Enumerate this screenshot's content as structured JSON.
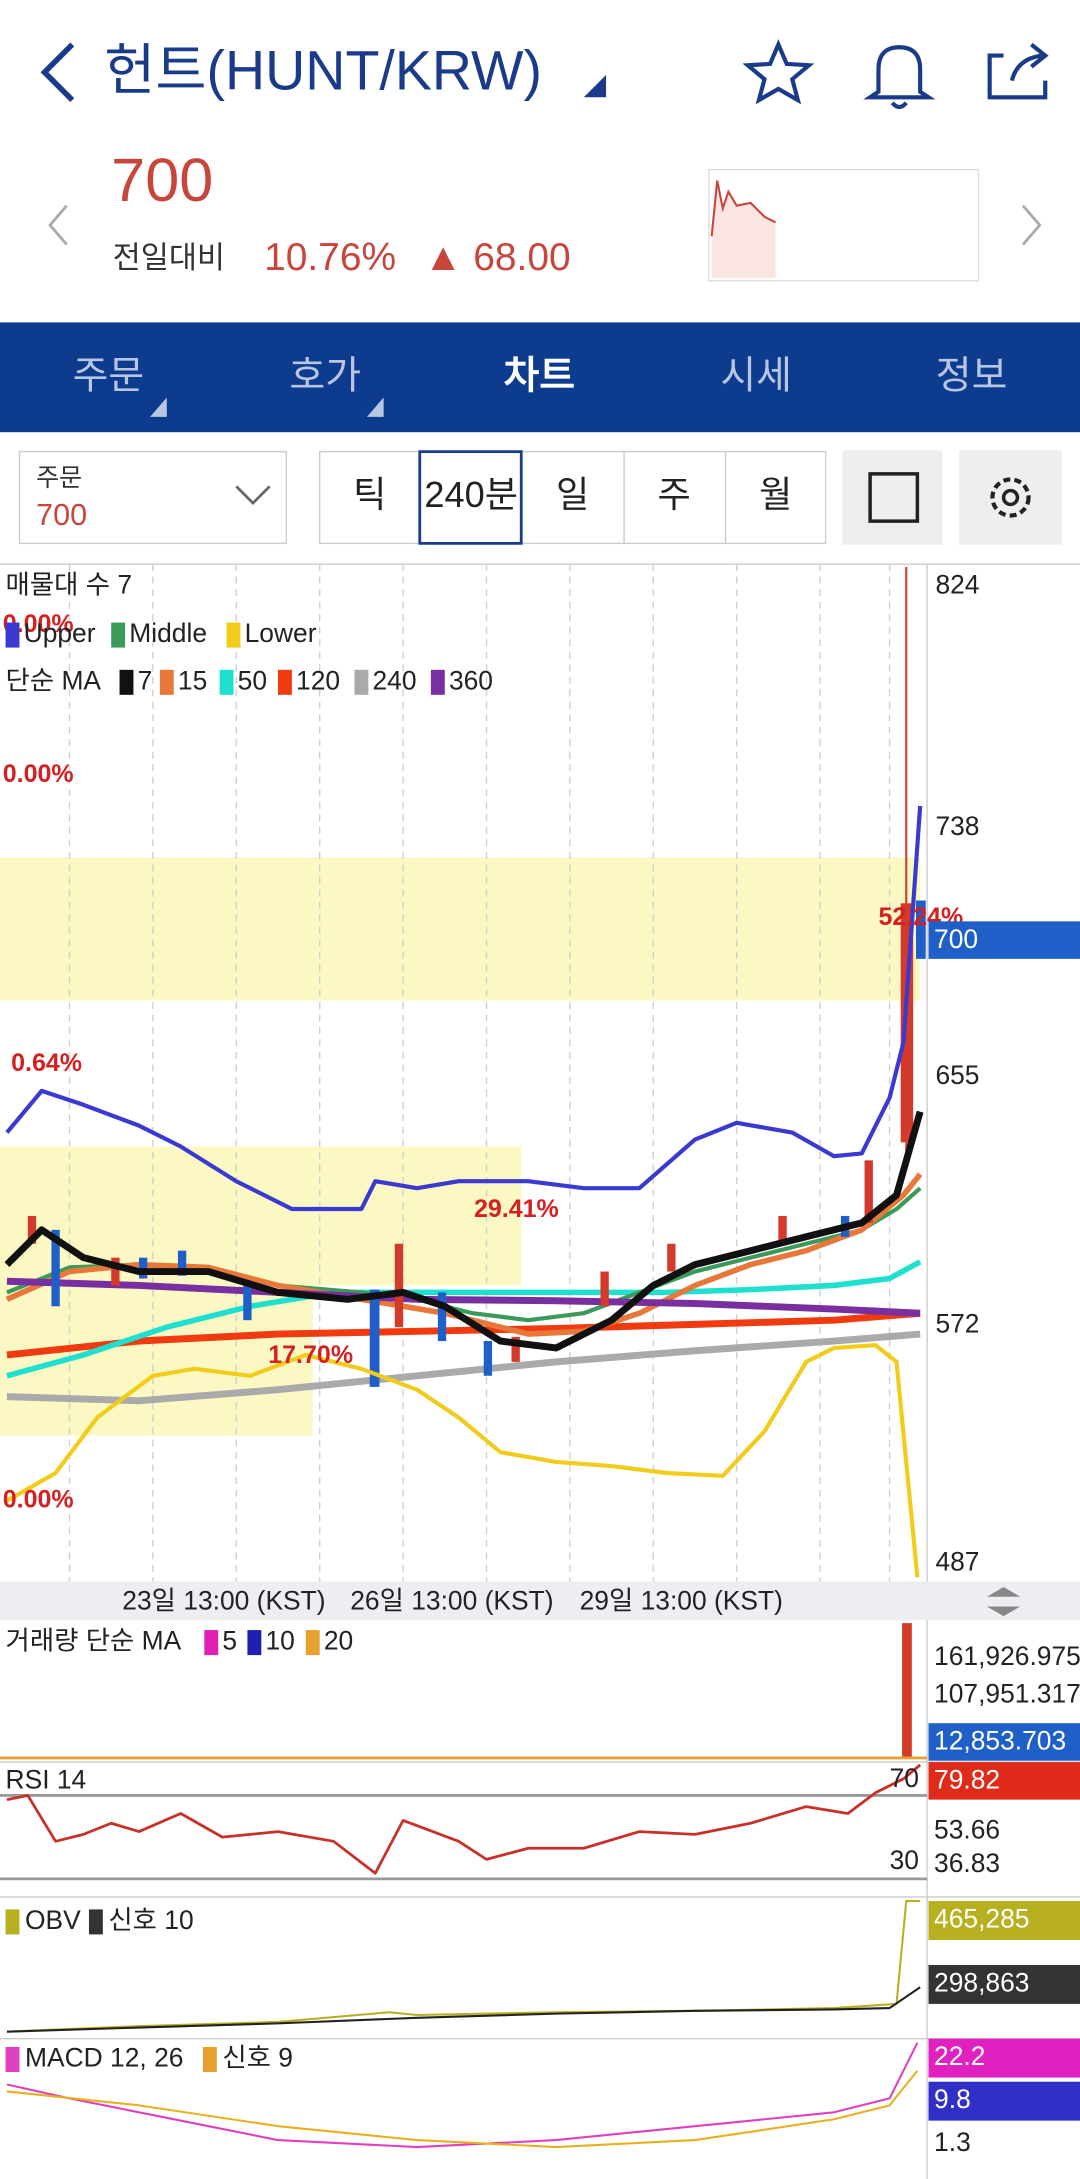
{
  "header": {
    "title": "헌트(HUNT/KRW)"
  },
  "quote": {
    "price": "700",
    "change_label": "전일대비",
    "change_pct": "10.76%",
    "change_abs": "▲ 68.00"
  },
  "tabs": [
    "주문",
    "호가",
    "차트",
    "시세",
    "정보"
  ],
  "toolbar": {
    "order_label": "주문",
    "order_value": "700",
    "periods": [
      "틱",
      "240분",
      "일",
      "주",
      "월"
    ]
  },
  "chart": {
    "volume_profile": "매물대 수 7",
    "bands": [
      "Upper",
      "Middle",
      "Lower"
    ],
    "ma_label": "단순 MA",
    "ma_periods": [
      "7",
      "15",
      "50",
      "120",
      "240",
      "360"
    ],
    "price_axis": [
      "824",
      "738",
      "655",
      "572",
      "487"
    ],
    "current_price": "700",
    "percent_labels": [
      "0.00%",
      "0.00%",
      "0.64%",
      "29.41%",
      "17.70%",
      "0.00%",
      "52.24%"
    ],
    "time_labels": [
      "23일 13:00 (KST)",
      "26일 13:00 (KST)",
      "29일 13:00 (KST)"
    ]
  },
  "volume": {
    "label": "거래량 단순 MA",
    "ma_periods": [
      "5",
      "10",
      "20"
    ],
    "axis": [
      "161,926.975",
      "107,951.317"
    ],
    "current": "12,853.703"
  },
  "rsi": {
    "label": "RSI 14",
    "upper": "70",
    "lower": "30",
    "current": "79.82",
    "axis": [
      "53.66",
      "36.83"
    ]
  },
  "obv": {
    "label": "OBV",
    "signal": "신호 10",
    "current": "465,285",
    "signal_value": "298,863"
  },
  "macd": {
    "label": "MACD 12, 26",
    "signal": "신호 9",
    "current": "22.2",
    "signal_value": "9.8",
    "axis": [
      "1.3"
    ]
  }
}
